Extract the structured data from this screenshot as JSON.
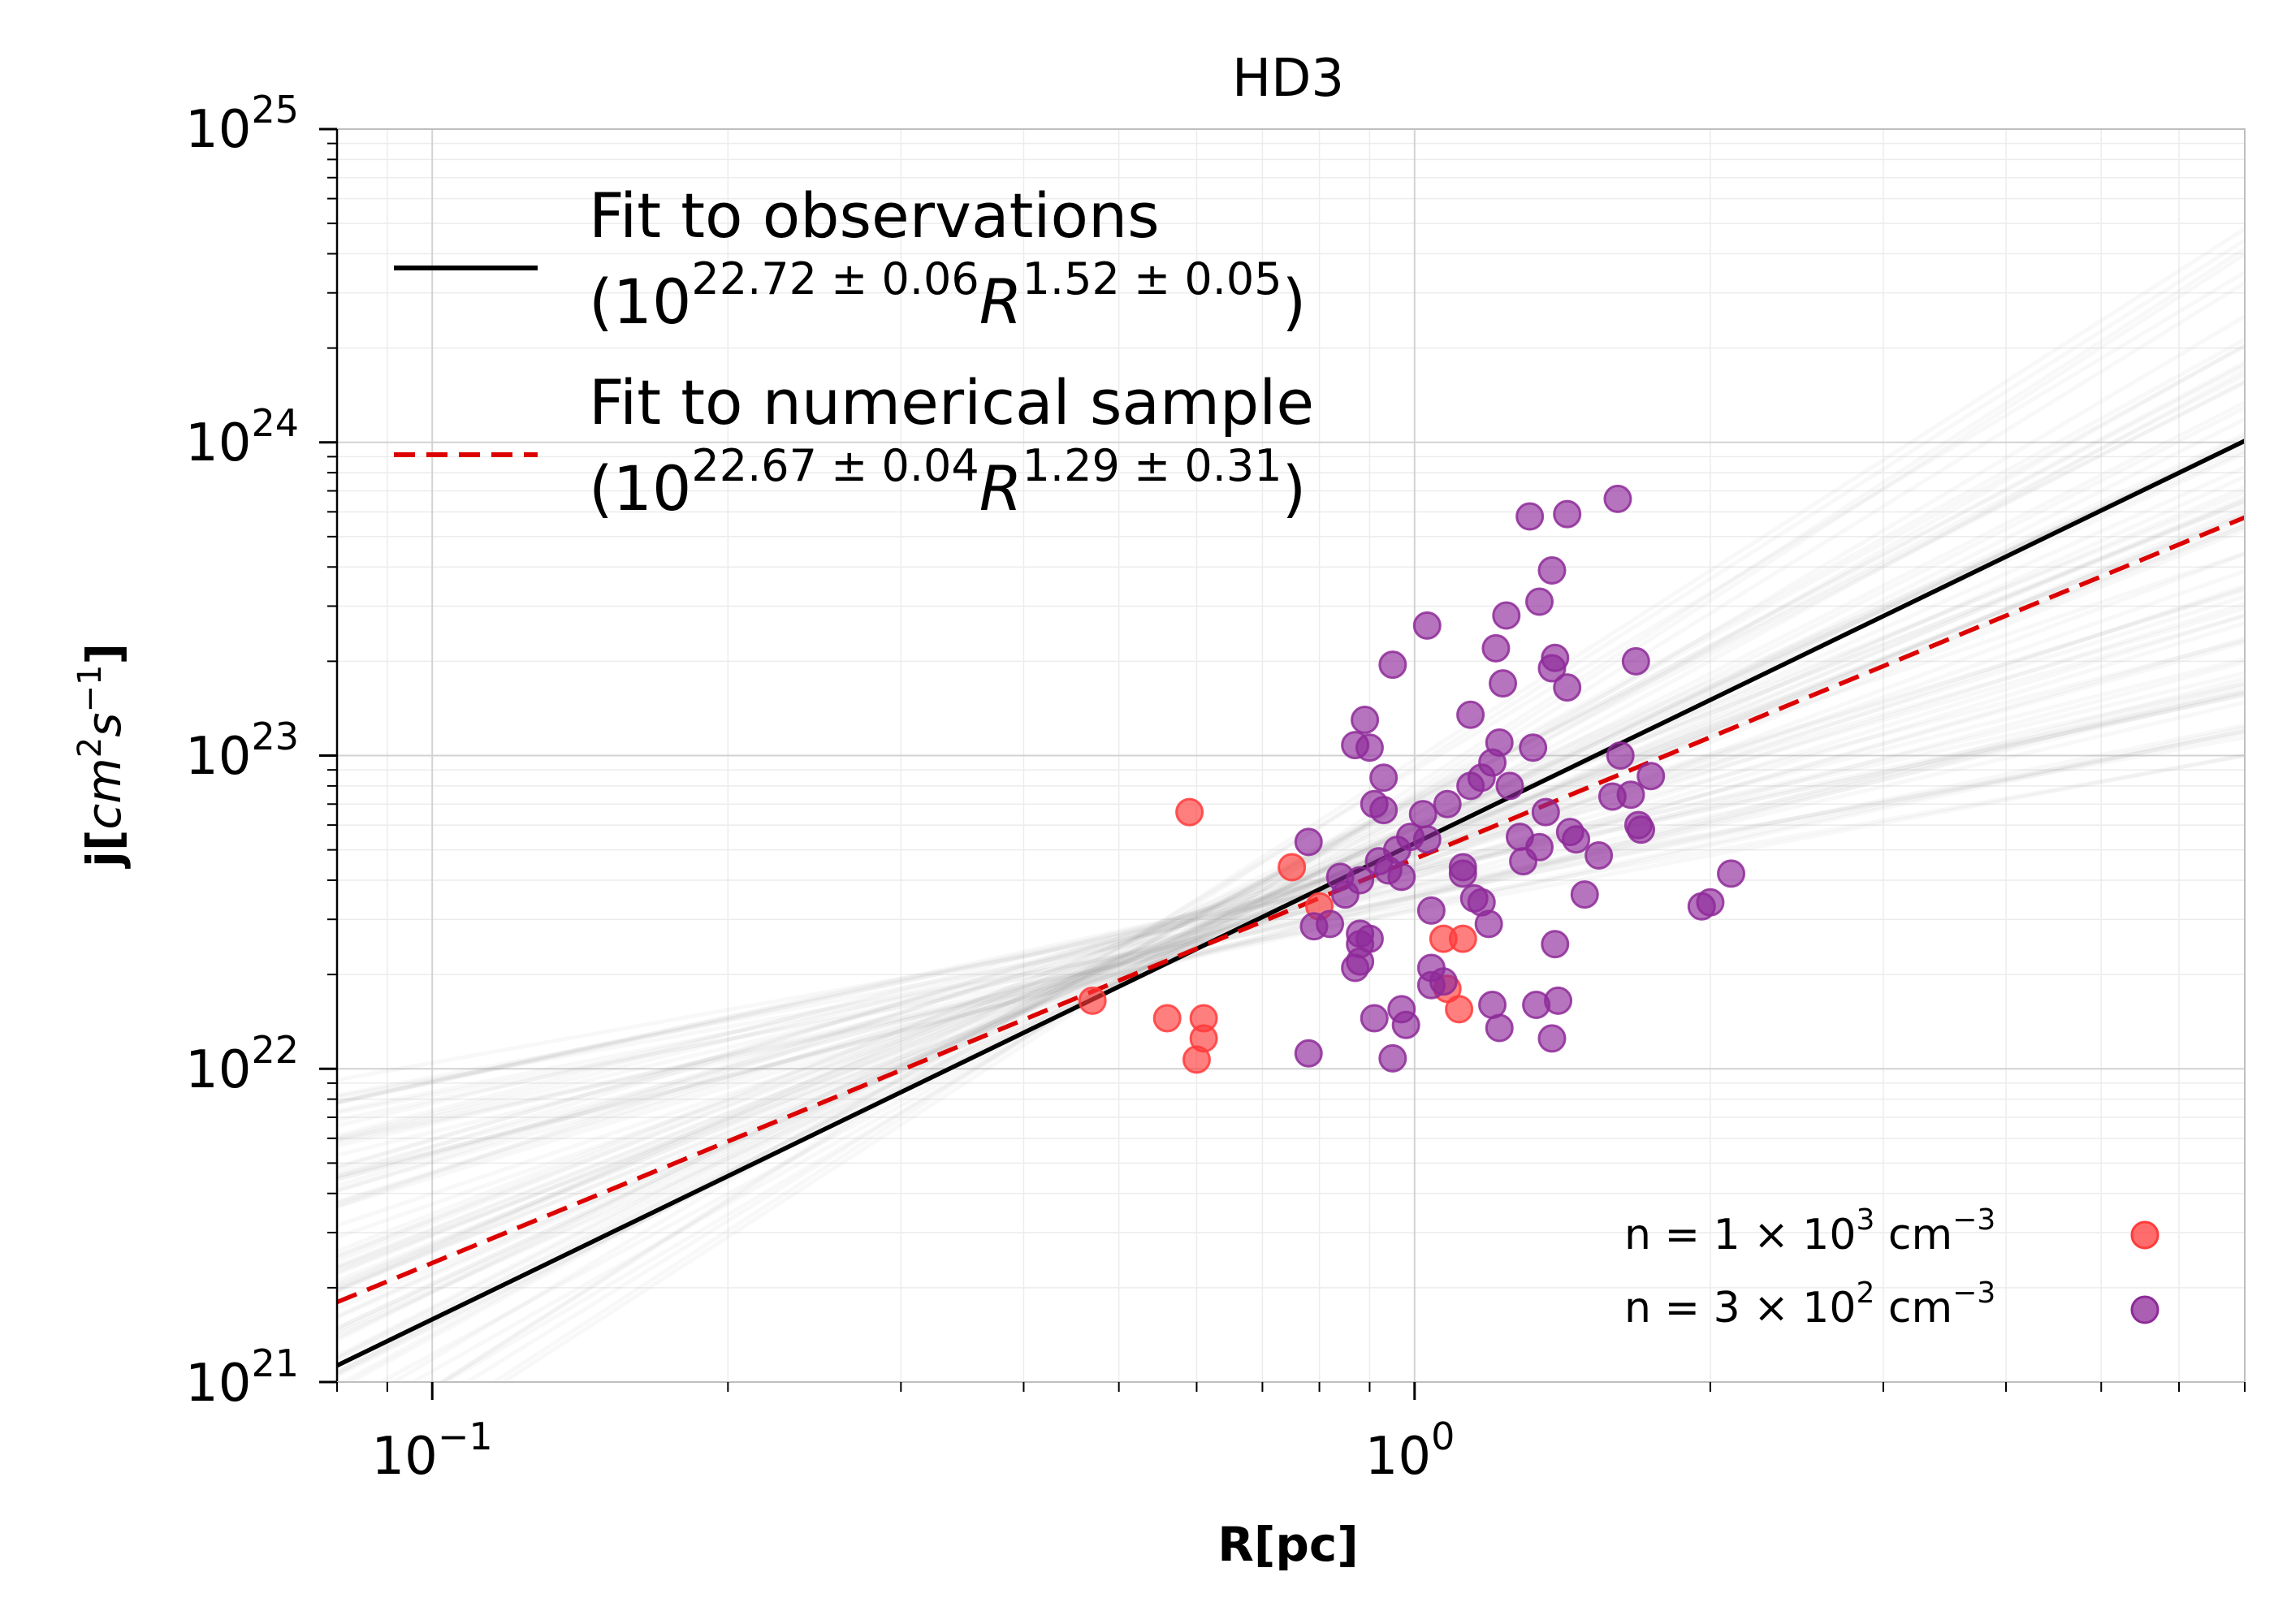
{
  "chart_data": {
    "type": "scatter",
    "title": "HD3",
    "xlabel": "R[pc]",
    "ylabel": "j[cm^2 s^-1]",
    "x_scale": "log",
    "y_scale": "log",
    "xlim": [
      0.08,
      7.0
    ],
    "ylim": [
      1e+21,
      1e+25
    ],
    "grid": true,
    "x_major_ticks": [
      {
        "value": 0.1,
        "base": "10",
        "exp": "−1"
      },
      {
        "value": 1.0,
        "base": "10",
        "exp": "0"
      }
    ],
    "y_major_ticks": [
      {
        "value": 1e+21,
        "base": "10",
        "exp": "21"
      },
      {
        "value": 1e+22,
        "base": "10",
        "exp": "22"
      },
      {
        "value": 1e+23,
        "base": "10",
        "exp": "23"
      },
      {
        "value": 1e+24,
        "base": "10",
        "exp": "24"
      },
      {
        "value": 1e+25,
        "base": "10",
        "exp": "25"
      }
    ],
    "fit_lines": [
      {
        "name": "Fit to observations",
        "formula": "(10^{22.72 ± 0.06} R^{1.52 ± 0.05})",
        "log_norm": 22.72,
        "slope": 1.52,
        "color": "#000000",
        "style": "solid"
      },
      {
        "name": "Fit to numerical sample",
        "formula": "(10^{22.67 ± 0.04} R^{1.29 ± 0.31})",
        "log_norm": 22.67,
        "slope": 1.29,
        "color": "#dd0000",
        "style": "dashed"
      }
    ],
    "legend_top": {
      "position": "top-left",
      "entries": [
        {
          "line1": "Fit to observations",
          "paren_open": "(10",
          "exp1": "22.72 ± 0.06",
          "mid": "R",
          "exp2": "1.52 ± 0.05",
          "paren_close": ")"
        },
        {
          "line1": "Fit to numerical sample",
          "paren_open": "(10",
          "exp1": "22.67 ± 0.04",
          "mid": "R",
          "exp2": "1.29 ± 0.31",
          "paren_close": ")"
        }
      ]
    },
    "legend_bottom": {
      "position": "bottom-right",
      "entries": [
        {
          "label_pre": "n  = 1 × 10",
          "label_exp": "3",
          "label_unit": " cm",
          "label_unit_exp": "−3",
          "color": "#ff3b3b"
        },
        {
          "label_pre": "n  = 3 × 10",
          "label_exp": "2",
          "label_unit": " cm",
          "label_unit_exp": "−3",
          "color": "#8e2a99"
        }
      ]
    },
    "series": [
      {
        "name": "n = 1 × 10^3 cm^-3",
        "color": "#ff3b3b",
        "points": [
          [
            0.59,
            6.6e+22
          ],
          [
            0.75,
            4.4e+22
          ],
          [
            0.8,
            3.3e+22
          ],
          [
            0.47,
            1.65e+22
          ],
          [
            0.56,
            1.45e+22
          ],
          [
            0.61,
            1.45e+22
          ],
          [
            0.61,
            1.25e+22
          ],
          [
            0.6,
            1.07e+22
          ],
          [
            1.07,
            2.6e+22
          ],
          [
            1.12,
            2.6e+22
          ],
          [
            1.08,
            1.8e+22
          ],
          [
            1.11,
            1.55e+22
          ]
        ]
      },
      {
        "name": "n = 3 × 10^2 cm^-3",
        "color": "#8e2a99",
        "points": [
          [
            1.31,
            5.8e+23
          ],
          [
            1.43,
            5.9e+23
          ],
          [
            1.61,
            6.6e+23
          ],
          [
            1.38,
            3.9e+23
          ],
          [
            1.34,
            3.1e+23
          ],
          [
            1.24,
            2.8e+23
          ],
          [
            1.03,
            2.6e+23
          ],
          [
            1.21,
            2.2e+23
          ],
          [
            1.39,
            2.05e+23
          ],
          [
            1.38,
            1.9e+23
          ],
          [
            1.43,
            1.65e+23
          ],
          [
            1.68,
            2e+23
          ],
          [
            0.95,
            1.95e+23
          ],
          [
            1.23,
            1.7e+23
          ],
          [
            0.89,
            1.3e+23
          ],
          [
            1.14,
            1.35e+23
          ],
          [
            0.87,
            1.08e+23
          ],
          [
            0.9,
            1.06e+23
          ],
          [
            1.22,
            1.1e+23
          ],
          [
            1.32,
            1.06e+23
          ],
          [
            1.2,
            9.5e+22
          ],
          [
            1.17,
            8.5e+22
          ],
          [
            1.14,
            8e+22
          ],
          [
            1.25,
            8e+22
          ],
          [
            0.93,
            8.5e+22
          ],
          [
            1.36,
            6.6e+22
          ],
          [
            0.91,
            7e+22
          ],
          [
            0.93,
            6.7e+22
          ],
          [
            1.02,
            6.5e+22
          ],
          [
            1.08,
            7e+22
          ],
          [
            1.62,
            1e+23
          ],
          [
            1.74,
            8.6e+22
          ],
          [
            1.66,
            7.5e+22
          ],
          [
            1.69,
            6e+22
          ],
          [
            1.7,
            5.8e+22
          ],
          [
            1.59,
            7.4e+22
          ],
          [
            0.78,
            5.3e+22
          ],
          [
            0.96,
            5e+22
          ],
          [
            0.99,
            5.5e+22
          ],
          [
            1.03,
            5.4e+22
          ],
          [
            1.28,
            5.5e+22
          ],
          [
            1.34,
            5.1e+22
          ],
          [
            1.44,
            5.7e+22
          ],
          [
            1.46,
            5.4e+22
          ],
          [
            1.54,
            4.8e+22
          ],
          [
            1.12,
            4.4e+22
          ],
          [
            1.12,
            4.2e+22
          ],
          [
            1.29,
            4.6e+22
          ],
          [
            0.84,
            4.1e+22
          ],
          [
            0.88,
            4e+22
          ],
          [
            0.92,
            4.6e+22
          ],
          [
            0.94,
            4.3e+22
          ],
          [
            0.97,
            4.1e+22
          ],
          [
            0.85,
            3.6e+22
          ],
          [
            1.15,
            3.5e+22
          ],
          [
            1.17,
            3.4e+22
          ],
          [
            1.49,
            3.6e+22
          ],
          [
            1.04,
            3.2e+22
          ],
          [
            0.79,
            2.85e+22
          ],
          [
            0.82,
            2.9e+22
          ],
          [
            0.88,
            2.7e+22
          ],
          [
            0.88,
            2.5e+22
          ],
          [
            0.9,
            2.6e+22
          ],
          [
            0.88,
            2.2e+22
          ],
          [
            0.87,
            2.1e+22
          ],
          [
            1.19,
            2.9e+22
          ],
          [
            1.39,
            2.5e+22
          ],
          [
            1.04,
            2.1e+22
          ],
          [
            1.07,
            1.9e+22
          ],
          [
            1.04,
            1.85e+22
          ],
          [
            1.2,
            1.6e+22
          ],
          [
            1.33,
            1.6e+22
          ],
          [
            1.4,
            1.65e+22
          ],
          [
            1.22,
            1.35e+22
          ],
          [
            1.38,
            1.25e+22
          ],
          [
            0.91,
            1.45e+22
          ],
          [
            0.97,
            1.55e+22
          ],
          [
            0.98,
            1.38e+22
          ],
          [
            0.78,
            1.12e+22
          ],
          [
            0.95,
            1.08e+22
          ],
          [
            1.96,
            3.3e+22
          ],
          [
            2.0,
            3.4e+22
          ],
          [
            2.1,
            4.2e+22
          ]
        ]
      }
    ]
  }
}
